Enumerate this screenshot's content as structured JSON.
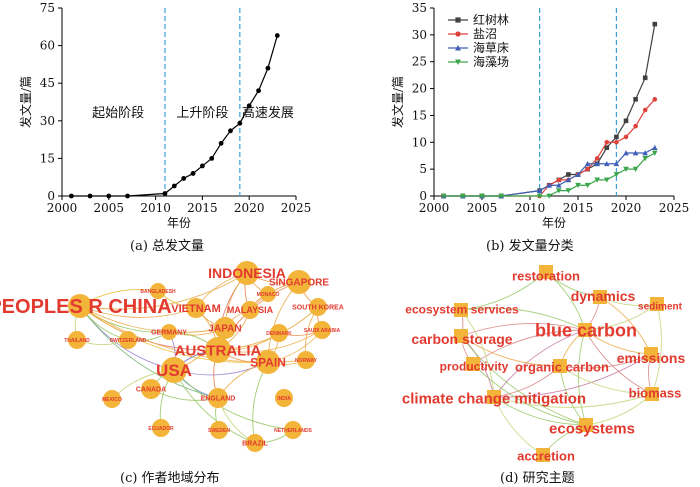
{
  "figure": {
    "captions": {
      "a": "(a)  总发文量",
      "b": "(b)  发文量分类",
      "c": "(c)  作者地域分布",
      "d": "(d)  研究主题"
    }
  },
  "colors": {
    "vline": "#3aa0d8",
    "node": "#f3b43a",
    "node_label": "#e23a2f",
    "axis": "#000000"
  },
  "chart_data": [
    {
      "id": "a",
      "type": "line",
      "xlabel": "年份",
      "ylabel": "发文量/篇",
      "xlim": [
        2000,
        2025
      ],
      "ylim": [
        0,
        75
      ],
      "x_ticks": [
        2000,
        2005,
        2010,
        2015,
        2020,
        2025
      ],
      "y_ticks": [
        0,
        15,
        30,
        45,
        60,
        75
      ],
      "vlines": [
        2011,
        2019
      ],
      "annotations": [
        {
          "text": "起始阶段",
          "x": 2006,
          "y": 30
        },
        {
          "text": "上升阶段",
          "x": 2015,
          "y": 30
        },
        {
          "text": "高速发展",
          "x": 2022,
          "y": 30
        }
      ],
      "series": [
        {
          "color": "#000000",
          "marker": "circle",
          "x": [
            2001,
            2003,
            2005,
            2007,
            2011,
            2012,
            2013,
            2014,
            2015,
            2016,
            2017,
            2018,
            2019,
            2020,
            2021,
            2022,
            2023
          ],
          "values": [
            0,
            0,
            0,
            0,
            1,
            4,
            7,
            9,
            12,
            15,
            21,
            26,
            29,
            36,
            42,
            51,
            64
          ]
        }
      ]
    },
    {
      "id": "b",
      "type": "line",
      "xlabel": "年份",
      "ylabel": "发文量/篇",
      "xlim": [
        2000,
        2025
      ],
      "ylim": [
        0,
        35
      ],
      "x_ticks": [
        2000,
        2005,
        2010,
        2015,
        2020,
        2025
      ],
      "y_ticks": [
        0,
        5,
        10,
        15,
        20,
        25,
        30,
        35
      ],
      "vlines": [
        2011,
        2019
      ],
      "legend_position": "top-left",
      "series": [
        {
          "name": "红树林",
          "color": "#404040",
          "marker": "square",
          "x": [
            2001,
            2003,
            2005,
            2007,
            2011,
            2012,
            2013,
            2014,
            2015,
            2016,
            2017,
            2018,
            2019,
            2020,
            2021,
            2022,
            2023
          ],
          "values": [
            0,
            0,
            0,
            0,
            1,
            2,
            3,
            4,
            4,
            5,
            6,
            9,
            11,
            14,
            18,
            22,
            32
          ]
        },
        {
          "name": "盐沼",
          "color": "#e0413a",
          "marker": "circle",
          "x": [
            2001,
            2003,
            2005,
            2007,
            2011,
            2012,
            2013,
            2014,
            2015,
            2016,
            2017,
            2018,
            2019,
            2020,
            2021,
            2022,
            2023
          ],
          "values": [
            0,
            0,
            0,
            0,
            0,
            2,
            3,
            3,
            4,
            5,
            7,
            10,
            10,
            11,
            13,
            16,
            18
          ]
        },
        {
          "name": "海草床",
          "color": "#3f5fb8",
          "marker": "triangle-up",
          "x": [
            2001,
            2003,
            2005,
            2007,
            2011,
            2012,
            2013,
            2014,
            2015,
            2016,
            2017,
            2018,
            2019,
            2020,
            2021,
            2022,
            2023
          ],
          "values": [
            0,
            0,
            0,
            0,
            1,
            2,
            2,
            3,
            4,
            6,
            6,
            6,
            6,
            8,
            8,
            8,
            9
          ]
        },
        {
          "name": "海藻场",
          "color": "#3aa64a",
          "marker": "triangle-down",
          "x": [
            2001,
            2003,
            2005,
            2007,
            2011,
            2012,
            2013,
            2014,
            2015,
            2016,
            2017,
            2018,
            2019,
            2020,
            2021,
            2022,
            2023
          ],
          "values": [
            0,
            0,
            0,
            0,
            0,
            0,
            1,
            1,
            2,
            2,
            3,
            3,
            4,
            5,
            5,
            7,
            8
          ]
        }
      ]
    }
  ],
  "network_c": {
    "nodes": [
      {
        "label": "INDONESIA"
      },
      {
        "label": "SINGAPORE"
      },
      {
        "label": "BANGLADESH"
      },
      {
        "label": "MONACO"
      },
      {
        "label": "PEOPLES R CHINA"
      },
      {
        "label": "VIETNAM"
      },
      {
        "label": "MALAYSIA"
      },
      {
        "label": "SOUTH KOREA"
      },
      {
        "label": "THAILAND"
      },
      {
        "label": "SWITZERLAND"
      },
      {
        "label": "GERMANY"
      },
      {
        "label": "JAPAN"
      },
      {
        "label": "DENMARK"
      },
      {
        "label": "SAUDI ARABIA"
      },
      {
        "label": "AUSTRALIA"
      },
      {
        "label": "SPAIN"
      },
      {
        "label": "NORWAY"
      },
      {
        "label": "USA"
      },
      {
        "label": "CANADA"
      },
      {
        "label": "MEXICO"
      },
      {
        "label": "ENGLAND"
      },
      {
        "label": "INDIA"
      },
      {
        "label": "ECUADOR"
      },
      {
        "label": "SWEDEN"
      },
      {
        "label": "NETHERLANDS"
      },
      {
        "label": "BRAZIL"
      }
    ]
  },
  "network_d": {
    "nodes": [
      {
        "label": "restoration"
      },
      {
        "label": "dynamics"
      },
      {
        "label": "sediment"
      },
      {
        "label": "ecosystem services"
      },
      {
        "label": "blue carbon"
      },
      {
        "label": "carbon storage"
      },
      {
        "label": "productivity"
      },
      {
        "label": "organic carbon"
      },
      {
        "label": "emissions"
      },
      {
        "label": "climate change mitigation"
      },
      {
        "label": "biomass"
      },
      {
        "label": "ecosystems"
      },
      {
        "label": "accretion"
      }
    ]
  }
}
